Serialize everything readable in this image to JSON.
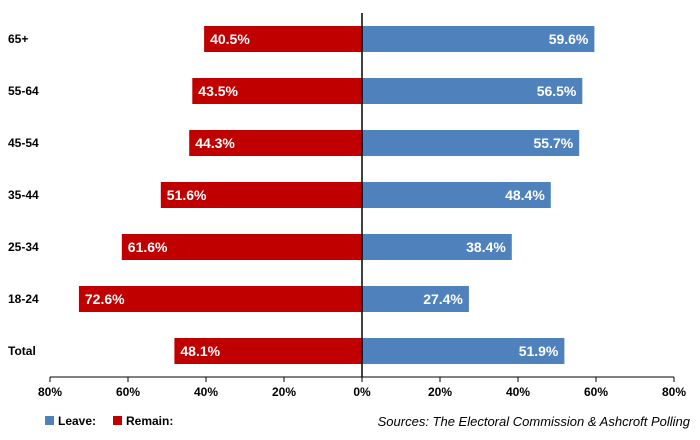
{
  "chart_data": {
    "type": "bar",
    "orientation": "horizontal-diverging",
    "categories": [
      "65+",
      "55-64",
      "45-54",
      "35-44",
      "25-34",
      "18-24",
      "Total"
    ],
    "series": [
      {
        "name": "Leave:",
        "color": "#4f81bd",
        "values": [
          59.6,
          56.5,
          55.7,
          48.4,
          38.4,
          27.4,
          51.9
        ],
        "labels": [
          "59.6%",
          "56.5%",
          "55.7%",
          "48.4%",
          "38.4%",
          "27.4%",
          "51.9%"
        ]
      },
      {
        "name": "Remain:",
        "color": "#c00000",
        "values": [
          40.5,
          43.5,
          44.3,
          51.6,
          61.6,
          72.6,
          48.1
        ],
        "labels": [
          "40.5%",
          "43.5%",
          "44.3%",
          "51.6%",
          "61.6%",
          "72.6%",
          "48.1%"
        ]
      }
    ],
    "xlim": [
      -80,
      80
    ],
    "xticks": [
      "80%",
      "60%",
      "40%",
      "20%",
      "0%",
      "20%",
      "40%",
      "60%",
      "80%"
    ],
    "grid": false,
    "legend_position": "bottom-left",
    "source": "Sources: The Electoral Commission & Ashcroft Polling"
  }
}
